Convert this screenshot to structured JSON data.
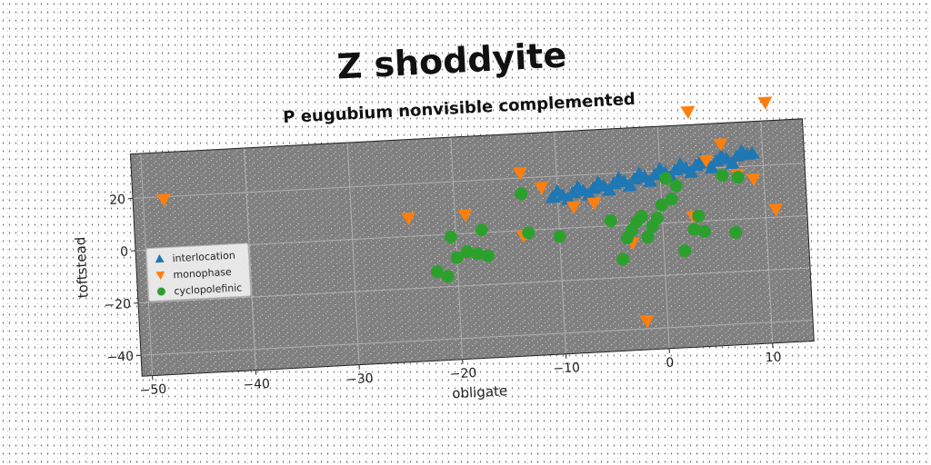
{
  "chart_data": {
    "type": "scatter",
    "title": "Z shoddyite",
    "subtitle": "P eugubium nonvisible complemented",
    "xlabel": "obligate",
    "ylabel": "toftstead",
    "xlim": [
      -51,
      14
    ],
    "ylim": [
      -48,
      37
    ],
    "x_ticks": [
      -50,
      -40,
      -30,
      -20,
      -10,
      0,
      10
    ],
    "y_ticks": [
      -40,
      -20,
      0,
      20
    ],
    "grid": true,
    "legend_position": "center-left",
    "colors": {
      "plot_background": "#808080",
      "interlocation": "#1f77b4",
      "monophase": "#ff7f0e",
      "cyclopolefinic": "#2ca02c"
    },
    "series": [
      {
        "name": "interlocation",
        "marker": "triangle-up",
        "x": [
          -10.5,
          -9.5,
          -8.5,
          -7.5,
          -6.5,
          -5.5,
          -4.5,
          -3.5,
          -2.5,
          -1.5,
          -0.5,
          0.5,
          1.5,
          2.5,
          3.5,
          4.5,
          5.5,
          6.5,
          7.5,
          8.5,
          9.0,
          -10.0,
          -8.0,
          -6.0,
          -4.0,
          -2.0,
          0.0,
          2.0,
          4.0,
          6.0,
          8.0,
          -9.0,
          -7.0,
          -5.0,
          -3.0,
          -1.0,
          1.0,
          3.0,
          5.0,
          7.0
        ],
        "y": [
          12.0,
          12.6,
          13.3,
          14.0,
          14.6,
          15.3,
          16.0,
          16.6,
          17.3,
          18.0,
          18.6,
          19.3,
          20.0,
          20.6,
          21.3,
          22.0,
          22.6,
          23.3,
          24.0,
          24.5,
          24.8,
          14.2,
          15.5,
          16.8,
          18.1,
          19.4,
          20.7,
          22.0,
          23.3,
          24.6,
          25.9,
          11.0,
          12.3,
          13.6,
          14.9,
          16.2,
          17.5,
          18.8,
          20.1,
          21.4
        ]
      },
      {
        "name": "monophase",
        "marker": "triangle-down",
        "x": [
          -48,
          -24.5,
          -19,
          -13.5,
          -13.5,
          -11.5,
          -8.5,
          -6.5,
          -3,
          -2,
          3,
          3,
          4.5,
          6,
          7.5,
          9,
          10.5,
          11
        ],
        "y": [
          19,
          7,
          7,
          22,
          -2,
          16,
          8,
          9,
          -7,
          -37,
          2,
          42,
          23,
          29,
          17,
          15,
          44,
          3
        ]
      },
      {
        "name": "cyclopolefinic",
        "marker": "circle",
        "x": [
          -22,
          -21,
          -20.5,
          -20,
          -19,
          -18,
          -17.5,
          -17,
          -13.5,
          -13,
          -10,
          -5,
          -4,
          -3.5,
          -3,
          -2.5,
          -2,
          -1.5,
          -1,
          -0.5,
          0,
          0.5,
          1,
          1.5,
          2,
          3,
          3.5,
          4,
          6,
          7,
          7.5
        ],
        "y": [
          -14,
          -16,
          -1,
          -9,
          -7,
          -8,
          1,
          -9,
          14,
          -1,
          -3,
          2,
          -13,
          -5,
          -2,
          1,
          3,
          -5,
          -1,
          2,
          7,
          17,
          9,
          14,
          -11,
          -3,
          2,
          -4,
          17,
          -5,
          16
        ]
      }
    ]
  }
}
